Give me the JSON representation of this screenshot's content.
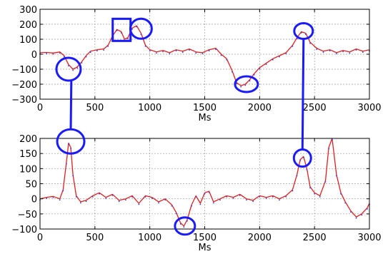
{
  "chart_data": [
    {
      "type": "line",
      "xlabel": "Ms",
      "xlim": [
        0,
        3000
      ],
      "ylim": [
        -300,
        300
      ],
      "xticks": [
        0,
        500,
        1000,
        1500,
        2000,
        2500,
        3000
      ],
      "xtick_labels": [
        "0",
        "500",
        "1000",
        "1500",
        "2000",
        "2500",
        "3000"
      ],
      "yticks": [
        -300,
        -200,
        -100,
        0,
        100,
        200,
        300
      ],
      "ytick_labels": [
        "−300",
        "−200",
        "−100",
        "0",
        "100",
        "200",
        "300"
      ],
      "grid": true,
      "colors": {
        "signal": "#e02020",
        "samples": "#3040ff",
        "marker": "#1a1aff"
      },
      "series": [
        {
          "x": [
            0,
            60,
            120,
            180,
            220,
            260,
            300,
            340,
            380,
            420,
            460,
            520,
            580,
            620,
            660,
            700,
            740,
            770,
            800,
            840,
            880,
            920,
            960,
            1000,
            1060,
            1120,
            1180,
            1240,
            1300,
            1360,
            1420,
            1480,
            1540,
            1600,
            1650,
            1700,
            1750,
            1790,
            1830,
            1870,
            1910,
            1950,
            2000,
            2060,
            2120,
            2180,
            2240,
            2300,
            2340,
            2380,
            2420,
            2460,
            2520,
            2580,
            2640,
            2700,
            2760,
            2820,
            2880,
            2940,
            3000
          ],
          "y": [
            10,
            12,
            8,
            15,
            -10,
            -70,
            -100,
            -85,
            -50,
            -10,
            20,
            30,
            35,
            60,
            120,
            165,
            150,
            100,
            110,
            175,
            190,
            140,
            60,
            30,
            15,
            25,
            10,
            30,
            20,
            35,
            15,
            10,
            30,
            40,
            0,
            -30,
            -110,
            -190,
            -210,
            -200,
            -170,
            -130,
            -90,
            -60,
            -30,
            -10,
            10,
            60,
            110,
            150,
            140,
            80,
            40,
            20,
            30,
            10,
            25,
            15,
            35,
            20,
            30
          ]
        }
      ]
    },
    {
      "type": "line",
      "xlabel": "Ms",
      "xlim": [
        0,
        3000
      ],
      "ylim": [
        -100,
        200
      ],
      "xticks": [
        0,
        500,
        1000,
        1500,
        2000,
        2500,
        3000
      ],
      "xtick_labels": [
        "0",
        "500",
        "1000",
        "1500",
        "2000",
        "2500",
        "3000"
      ],
      "yticks": [
        -100,
        -50,
        0,
        50,
        100,
        150,
        200
      ],
      "ytick_labels": [
        "−100",
        "−50",
        "0",
        "50",
        "100",
        "150",
        "200"
      ],
      "grid": true,
      "colors": {
        "signal": "#e02020",
        "samples": "#3040ff",
        "marker": "#1a1aff"
      },
      "series": [
        {
          "x": [
            0,
            60,
            120,
            180,
            210,
            240,
            260,
            280,
            300,
            330,
            370,
            420,
            480,
            540,
            600,
            660,
            720,
            780,
            840,
            900,
            960,
            1020,
            1080,
            1140,
            1200,
            1240,
            1280,
            1310,
            1340,
            1380,
            1420,
            1460,
            1500,
            1540,
            1580,
            1640,
            1700,
            1760,
            1820,
            1880,
            1940,
            2000,
            2060,
            2120,
            2180,
            2240,
            2300,
            2340,
            2370,
            2400,
            2430,
            2460,
            2500,
            2550,
            2600,
            2630,
            2660,
            2700,
            2740,
            2780,
            2830,
            2880,
            2930,
            2980,
            3000
          ],
          "y": [
            0,
            5,
            8,
            0,
            30,
            120,
            185,
            170,
            80,
            10,
            -10,
            -5,
            10,
            20,
            5,
            15,
            -5,
            0,
            10,
            -15,
            10,
            5,
            -10,
            0,
            -20,
            -45,
            -80,
            -90,
            -70,
            -20,
            10,
            -15,
            20,
            25,
            -10,
            0,
            10,
            5,
            15,
            0,
            -5,
            10,
            5,
            10,
            0,
            10,
            30,
            80,
            130,
            140,
            100,
            40,
            20,
            10,
            60,
            170,
            200,
            80,
            20,
            -10,
            -40,
            -60,
            -50,
            -30,
            -15
          ]
        }
      ]
    }
  ]
}
